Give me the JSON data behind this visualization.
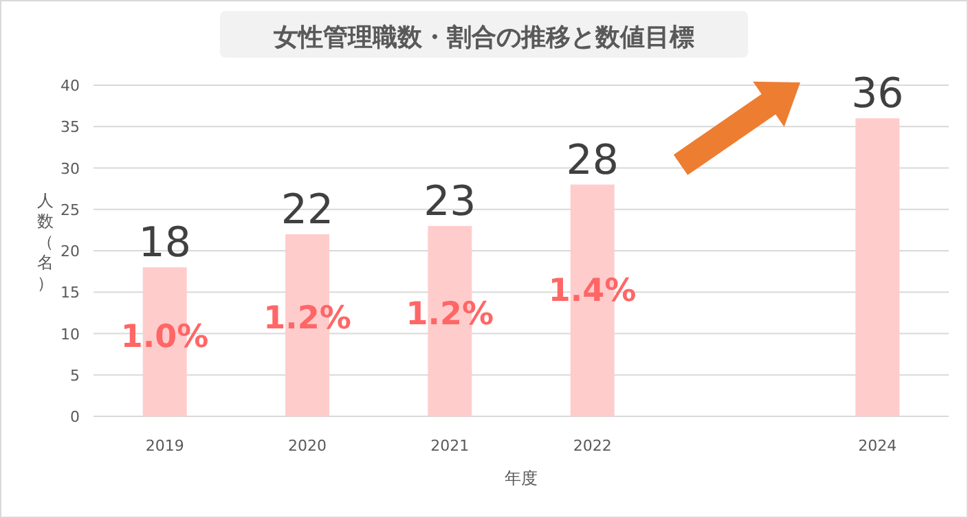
{
  "chart_data": {
    "type": "bar",
    "title": "女性管理職数・割合の推移と数値目標",
    "xlabel": "年度",
    "ylabel": "人数（名）",
    "categories": [
      "2019",
      "2020",
      "2021",
      "2022",
      null,
      "2024"
    ],
    "values": [
      18,
      22,
      23,
      28,
      null,
      36
    ],
    "color": "#ffcccc",
    "ylim": [
      0,
      40
    ],
    "yticks": [
      0,
      5,
      10,
      15,
      20,
      25,
      30,
      35,
      40
    ],
    "grid": "y",
    "data_labels": true,
    "annotations": [
      "1.0%",
      "1.2%",
      "1.2%",
      "1.4%"
    ]
  }
}
